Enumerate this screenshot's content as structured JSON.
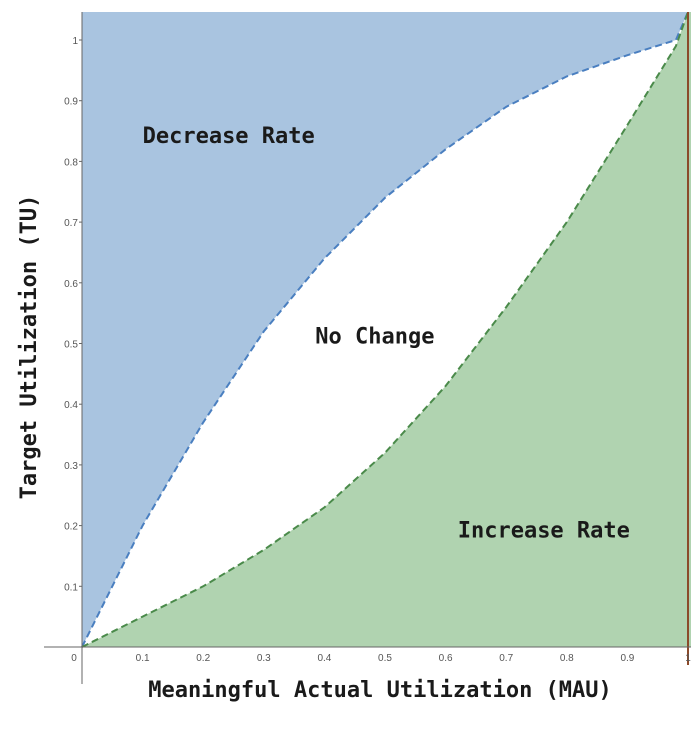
{
  "chart_data": {
    "type": "area",
    "xlabel": "Meaningful Actual Utilization (MAU)",
    "ylabel": "Target Utilization (TU)",
    "xlim": [
      0,
      1
    ],
    "ylim": [
      0,
      1
    ],
    "x_ticks": [
      "0",
      "0.1",
      "0.2",
      "0.3",
      "0.4",
      "0.5",
      "0.6",
      "0.7",
      "0.8",
      "0.9",
      "1"
    ],
    "y_ticks": [
      "0.1",
      "0.2",
      "0.3",
      "0.4",
      "0.5",
      "0.6",
      "0.7",
      "0.8",
      "0.9",
      "1"
    ],
    "grid": false,
    "boundaries": {
      "upper": {
        "color": "#4a7fc0",
        "style": "dashed",
        "points": [
          [
            0,
            0
          ],
          [
            0.1,
            0.2
          ],
          [
            0.2,
            0.37
          ],
          [
            0.3,
            0.52
          ],
          [
            0.4,
            0.64
          ],
          [
            0.5,
            0.74
          ],
          [
            0.6,
            0.82
          ],
          [
            0.7,
            0.89
          ],
          [
            0.8,
            0.94
          ],
          [
            0.9,
            0.975
          ],
          [
            0.98,
            1.0
          ],
          [
            1,
            1.05
          ]
        ]
      },
      "lower": {
        "color": "#4a8a4a",
        "style": "dashed",
        "points": [
          [
            0,
            0
          ],
          [
            0.1,
            0.05
          ],
          [
            0.2,
            0.1
          ],
          [
            0.3,
            0.16
          ],
          [
            0.4,
            0.23
          ],
          [
            0.5,
            0.32
          ],
          [
            0.6,
            0.43
          ],
          [
            0.7,
            0.56
          ],
          [
            0.8,
            0.7
          ],
          [
            0.9,
            0.86
          ],
          [
            0.98,
            0.99
          ],
          [
            1,
            1.05
          ]
        ]
      }
    },
    "regions": [
      {
        "label": "Decrease Rate",
        "color": "#a9c4e0",
        "at": [
          0.1,
          0.83
        ]
      },
      {
        "label": "No Change",
        "color": "#ffffff",
        "at": [
          0.385,
          0.5
        ]
      },
      {
        "label": "Increase Rate",
        "color": "#b0d3b0",
        "at": [
          0.62,
          0.18
        ]
      }
    ],
    "reference_line": {
      "x": 1,
      "color": "#8b4a2a"
    }
  }
}
